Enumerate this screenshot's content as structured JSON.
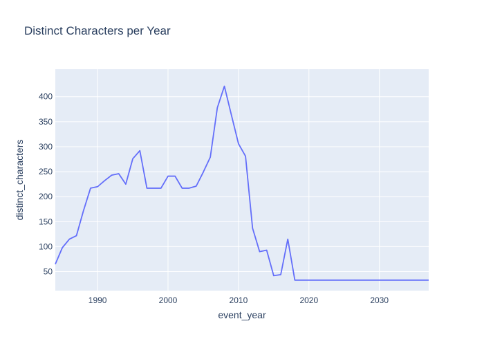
{
  "chart_data": {
    "type": "line",
    "title": "Distinct Characters per Year",
    "xlabel": "event_year",
    "ylabel": "distinct_characters",
    "xlim": [
      1984,
      2037
    ],
    "ylim": [
      12,
      455
    ],
    "x_ticks": [
      1990,
      2000,
      2010,
      2020,
      2030
    ],
    "y_ticks": [
      50,
      100,
      150,
      200,
      250,
      300,
      350,
      400
    ],
    "grid": true,
    "legend": "none",
    "colors": {
      "line": "#636efa",
      "plot_bg": "#e5ecf6",
      "grid": "#ffffff",
      "text": "#2a3f5f"
    },
    "series": [
      {
        "x": [
          1984,
          1985,
          1986,
          1987,
          1988,
          1989,
          1990,
          1991,
          1992,
          1993,
          1994,
          1995,
          1996,
          1997,
          1998,
          1999,
          2000,
          2001,
          2002,
          2003,
          2004,
          2005,
          2006,
          2007,
          2008,
          2009,
          2010,
          2011,
          2012,
          2013,
          2014,
          2015,
          2016,
          2017,
          2018,
          2019,
          2020,
          2021,
          2022,
          2023,
          2024,
          2025,
          2026,
          2027,
          2028,
          2029,
          2030,
          2031,
          2032,
          2033,
          2034,
          2035,
          2036,
          2037
        ],
        "y": [
          65,
          98,
          115,
          122,
          172,
          217,
          220,
          232,
          243,
          246,
          225,
          276,
          292,
          217,
          217,
          217,
          241,
          241,
          217,
          217,
          221,
          249,
          279,
          378,
          421,
          363,
          306,
          281,
          137,
          90,
          93,
          42,
          44,
          115,
          33,
          33,
          33,
          33,
          33,
          33,
          33,
          33,
          33,
          33,
          33,
          33,
          33,
          33,
          33,
          33,
          33,
          33,
          33,
          33
        ]
      }
    ]
  }
}
